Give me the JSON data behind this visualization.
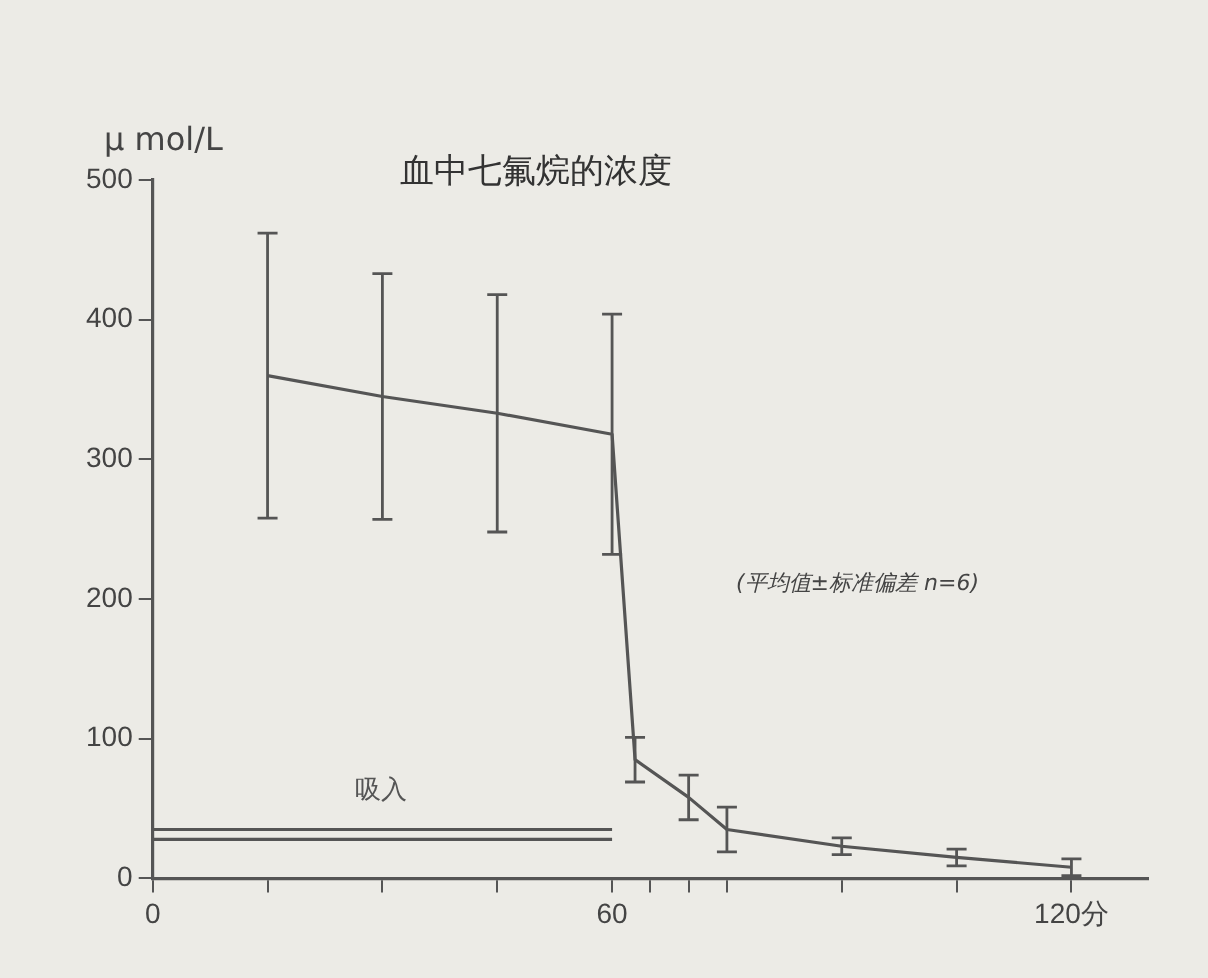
{
  "chart_data": {
    "type": "line",
    "title": "血中七氟烷的浓度",
    "ylabel": "μ mol/L",
    "x": [
      0,
      15,
      30,
      45,
      60,
      63,
      70,
      75,
      90,
      105,
      120
    ],
    "series": [
      {
        "color": "#555555",
        "values": [
          null,
          360,
          345,
          333,
          318,
          85,
          58,
          35,
          23,
          15,
          8
        ],
        "errors": [
          null,
          102,
          88,
          85,
          86,
          16,
          16,
          16,
          6,
          6,
          6
        ]
      },
      {
        "name": "吸入",
        "color": "#555555",
        "values": [
          35,
          35,
          35,
          35,
          35,
          null,
          null,
          null,
          null,
          null,
          null
        ]
      },
      {
        "color": "#555555",
        "values": [
          28,
          28,
          28,
          28,
          28,
          null,
          null,
          null,
          null,
          null,
          null
        ]
      }
    ],
    "xlim": [
      0,
      130
    ],
    "ylim": [
      0,
      500
    ],
    "xticks": [
      0,
      {
        "value": 15,
        "label": null
      },
      {
        "value": 30,
        "label": null
      },
      {
        "value": 45,
        "label": null
      },
      60,
      {
        "value": 65,
        "label": null
      },
      {
        "value": 70,
        "label": null
      },
      {
        "value": 75,
        "label": null
      },
      {
        "value": 90,
        "label": null
      },
      {
        "value": 105,
        "label": null
      },
      {
        "value": 120,
        "label": "120分"
      }
    ],
    "yticks": [
      0,
      100,
      200,
      300,
      400,
      500
    ],
    "annotations": [
      "(平均值±标准偏差 n=6)"
    ],
    "grid": false,
    "legend": false,
    "marker": "none",
    "line_style": "solid"
  }
}
